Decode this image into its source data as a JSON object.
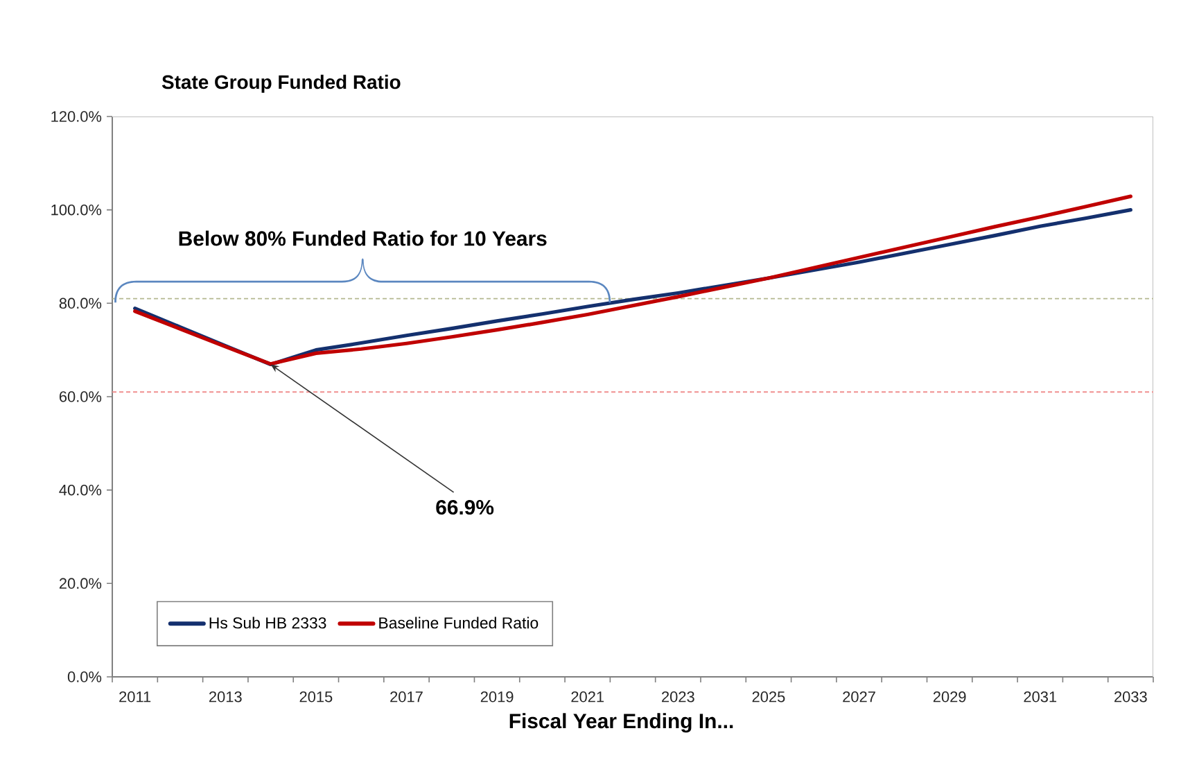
{
  "chart_data": {
    "type": "line",
    "title": "State Group Funded Ratio",
    "xlabel": "Fiscal Year Ending In...",
    "x": [
      2011,
      2012,
      2013,
      2014,
      2015,
      2016,
      2017,
      2018,
      2019,
      2020,
      2021,
      2022,
      2023,
      2024,
      2025,
      2026,
      2027,
      2028,
      2029,
      2030,
      2031,
      2032,
      2033
    ],
    "series": [
      {
        "name": "Hs Sub HB 2333",
        "color": "#14306e",
        "values": [
          78.9,
          74.9,
          70.9,
          66.9,
          70.0,
          71.5,
          73.1,
          74.6,
          76.2,
          77.7,
          79.3,
          80.8,
          82.2,
          83.8,
          85.4,
          87.1,
          88.8,
          90.7,
          92.6,
          94.5,
          96.5,
          98.2,
          100.0
        ]
      },
      {
        "name": "Baseline Funded Ratio",
        "color": "#c00000",
        "values": [
          78.3,
          74.5,
          70.7,
          67.0,
          69.3,
          70.2,
          71.4,
          72.8,
          74.3,
          75.9,
          77.6,
          79.5,
          81.4,
          83.4,
          85.4,
          87.6,
          89.8,
          92.0,
          94.2,
          96.4,
          98.5,
          100.7,
          102.9
        ]
      }
    ],
    "xlim": [
      2010.5,
      2033.5
    ],
    "xticks": [
      {
        "value": 2010.5,
        "label": null
      },
      2011,
      {
        "value": 2011.5,
        "label": null
      },
      {
        "value": 2012.5,
        "label": null
      },
      2013,
      {
        "value": 2013.5,
        "label": null
      },
      {
        "value": 2014.5,
        "label": null
      },
      2015,
      {
        "value": 2015.5,
        "label": null
      },
      {
        "value": 2016.5,
        "label": null
      },
      2017,
      {
        "value": 2017.5,
        "label": null
      },
      {
        "value": 2018.5,
        "label": null
      },
      2019,
      {
        "value": 2019.5,
        "label": null
      },
      {
        "value": 2020.5,
        "label": null
      },
      2021,
      {
        "value": 2021.5,
        "label": null
      },
      {
        "value": 2022.5,
        "label": null
      },
      2023,
      {
        "value": 2023.5,
        "label": null
      },
      {
        "value": 2024.5,
        "label": null
      },
      2025,
      {
        "value": 2025.5,
        "label": null
      },
      {
        "value": 2026.5,
        "label": null
      },
      2027,
      {
        "value": 2027.5,
        "label": null
      },
      {
        "value": 2028.5,
        "label": null
      },
      2029,
      {
        "value": 2029.5,
        "label": null
      },
      {
        "value": 2030.5,
        "label": null
      },
      2031,
      {
        "value": 2031.5,
        "label": null
      },
      {
        "value": 2032.5,
        "label": null
      },
      2033,
      {
        "value": 2033.5,
        "label": null
      }
    ],
    "ylim": [
      0,
      120
    ],
    "yticks": [
      {
        "value": 0,
        "label": "0.0%"
      },
      {
        "value": 20,
        "label": "20.0%"
      },
      {
        "value": 40,
        "label": "40.0%"
      },
      {
        "value": 60,
        "label": "60.0%"
      },
      {
        "value": 80,
        "label": "80.0%"
      },
      {
        "value": 100,
        "label": "100.0%"
      },
      {
        "value": 120,
        "label": "120.0%"
      }
    ],
    "ref_lines": [
      {
        "axis": "y",
        "value": 81,
        "color": "#b4b890",
        "line_style": "dashed"
      },
      {
        "axis": "y",
        "value": 61,
        "color": "#f09090",
        "line_style": "dashed"
      }
    ],
    "annotations": [
      "Below 80% Funded Ratio for 10 Years",
      {
        "text": "66.9%",
        "x": 2014,
        "y": 66.9
      }
    ],
    "legend": "bottom left",
    "marker": "none",
    "line_style": "solid"
  }
}
